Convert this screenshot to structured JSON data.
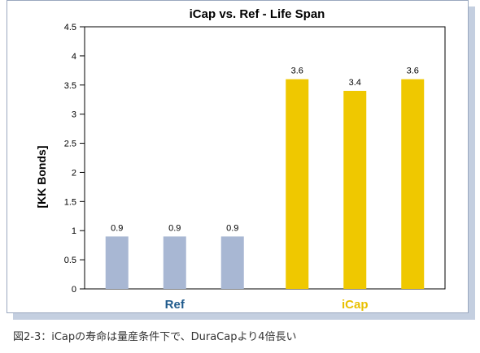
{
  "chart_data": {
    "type": "bar",
    "title": "iCap vs. Ref - Life Span",
    "ylabel": "[KK Bonds]",
    "xlabel": "",
    "ylim": [
      0,
      4.5
    ],
    "yticks": [
      "0",
      "0.5",
      "1",
      "1.5",
      "2",
      "2.5",
      "3",
      "3.5",
      "4",
      "4.5"
    ],
    "grid": false,
    "groups": [
      {
        "label": "Ref",
        "label_color": "#1f5a8c",
        "bar_color": "#a8b7d3",
        "values": [
          0.9,
          0.9,
          0.9
        ]
      },
      {
        "label": "iCap",
        "label_color": "#e9c000",
        "bar_color": "#efc800",
        "values": [
          3.6,
          3.4,
          3.6
        ]
      }
    ],
    "data_labels": [
      "0.9",
      "0.9",
      "0.9",
      "3.6",
      "3.4",
      "3.6"
    ]
  },
  "caption": "図2-3：iCapの寿命は量産条件下で、DuraCapより4倍長い"
}
